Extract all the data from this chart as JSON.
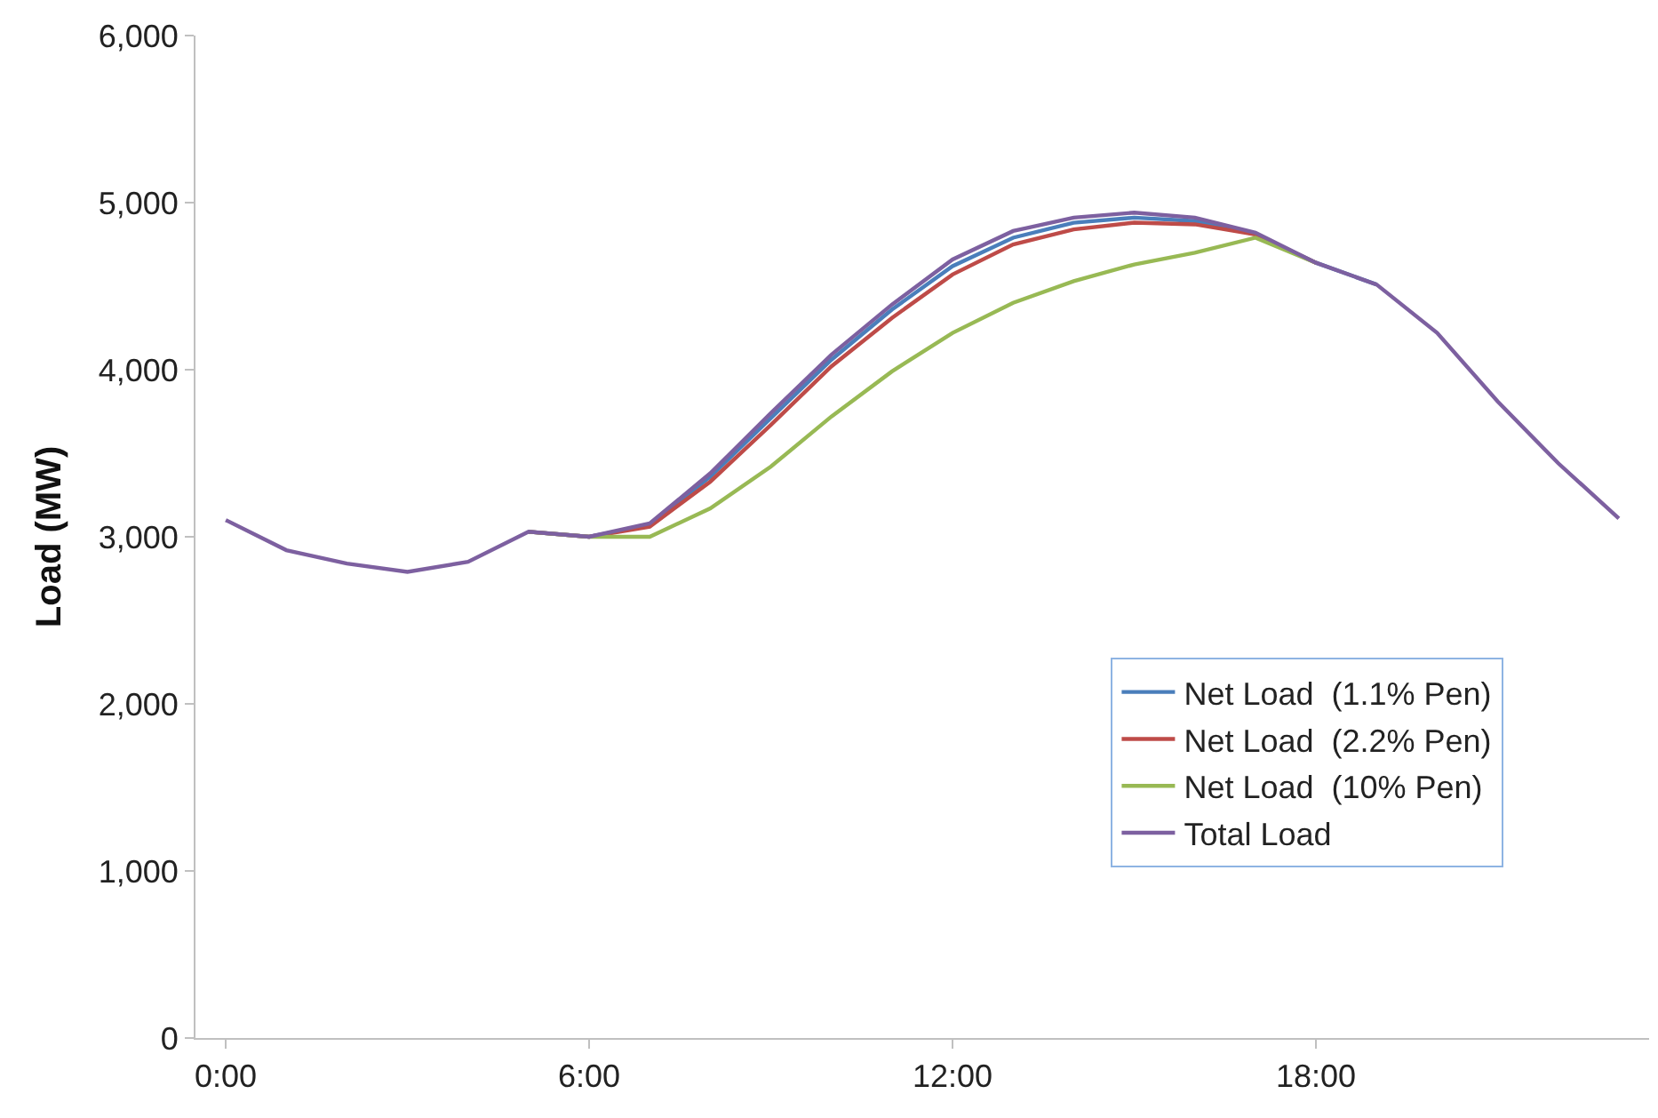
{
  "chart_data": {
    "type": "line",
    "ylabel": "Load (MW)",
    "x": [
      0,
      1,
      2,
      3,
      4,
      5,
      6,
      7,
      8,
      9,
      10,
      11,
      12,
      13,
      14,
      15,
      16,
      17,
      18,
      19,
      20,
      21,
      22,
      23
    ],
    "xlim": [
      -0.5,
      23.5
    ],
    "xticks": [
      {
        "value": 0,
        "label": "0:00"
      },
      {
        "value": 6,
        "label": "6:00"
      },
      {
        "value": 12,
        "label": "12:00"
      },
      {
        "value": 18,
        "label": "18:00"
      }
    ],
    "ylim": [
      0,
      6000
    ],
    "yticks": [
      {
        "value": 0,
        "label": "0"
      },
      {
        "value": 1000,
        "label": "1,000"
      },
      {
        "value": 2000,
        "label": "2,000"
      },
      {
        "value": 3000,
        "label": "3,000"
      },
      {
        "value": 4000,
        "label": "4,000"
      },
      {
        "value": 5000,
        "label": "5,000"
      },
      {
        "value": 6000,
        "label": "6,000"
      }
    ],
    "legend": "bottom right",
    "marker": "none",
    "line_style": "solid",
    "series": [
      {
        "name": "Net Load  (1.1% Pen)",
        "color": "#4a7ebb",
        "values": [
          null,
          null,
          null,
          null,
          null,
          3030,
          3000,
          3070,
          3360,
          3710,
          4060,
          4360,
          4620,
          4790,
          4880,
          4910,
          4890,
          4810,
          4640,
          4510,
          null,
          null,
          null,
          null
        ]
      },
      {
        "name": "Net Load  (2.2% Pen)",
        "color": "#be4b48",
        "values": [
          null,
          null,
          null,
          null,
          null,
          3030,
          3000,
          3060,
          3330,
          3670,
          4020,
          4310,
          4570,
          4750,
          4840,
          4880,
          4870,
          4810,
          4640,
          null,
          null,
          null,
          null,
          null
        ]
      },
      {
        "name": "Net Load  (10% Pen)",
        "color": "#98b954",
        "values": [
          null,
          null,
          null,
          null,
          null,
          3030,
          3000,
          3000,
          3170,
          3420,
          3720,
          3990,
          4220,
          4400,
          4530,
          4630,
          4700,
          4790,
          4640,
          null,
          null,
          null,
          null,
          null
        ]
      },
      {
        "name": "Total Load",
        "color": "#7d60a0",
        "values": [
          3100,
          2920,
          2840,
          2790,
          2850,
          3030,
          3000,
          3080,
          3380,
          3740,
          4090,
          4390,
          4660,
          4830,
          4910,
          4940,
          4910,
          4820,
          4640,
          4510,
          4220,
          3810,
          3440,
          3110
        ]
      }
    ]
  }
}
